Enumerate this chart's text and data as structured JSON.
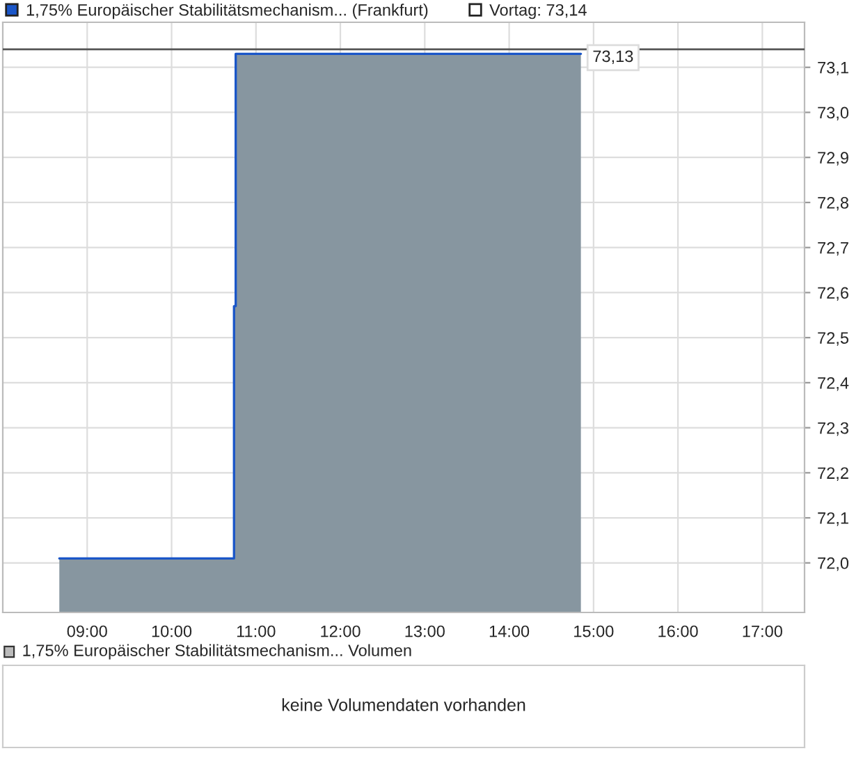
{
  "chart_data": [
    {
      "type": "area",
      "series": [
        {
          "name": "1,75% Europäischer Stabilitätsmechanism... (Frankfurt)",
          "color": "#1a56c8",
          "x": [
            8.67,
            10.74,
            10.74,
            10.76,
            10.76,
            14.85
          ],
          "values": [
            72.01,
            72.01,
            72.57,
            72.57,
            73.13,
            73.13
          ]
        }
      ],
      "xlim": [
        8.0,
        17.5
      ],
      "xticks": [
        {
          "value": 9,
          "label": "09:00"
        },
        {
          "value": 10,
          "label": "10:00"
        },
        {
          "value": 11,
          "label": "11:00"
        },
        {
          "value": 12,
          "label": "12:00"
        },
        {
          "value": 13,
          "label": "13:00"
        },
        {
          "value": 14,
          "label": "14:00"
        },
        {
          "value": 15,
          "label": "15:00"
        },
        {
          "value": 16,
          "label": "16:00"
        },
        {
          "value": 17,
          "label": "17:00"
        }
      ],
      "ylim": [
        71.89,
        73.2
      ],
      "yticks": [
        {
          "value": 72.0,
          "label": "72,0"
        },
        {
          "value": 72.1,
          "label": "72,1"
        },
        {
          "value": 72.2,
          "label": "72,2"
        },
        {
          "value": 72.3,
          "label": "72,3"
        },
        {
          "value": 72.4,
          "label": "72,4"
        },
        {
          "value": 72.5,
          "label": "72,5"
        },
        {
          "value": 72.6,
          "label": "72,6"
        },
        {
          "value": 72.7,
          "label": "72,7"
        },
        {
          "value": 72.8,
          "label": "72,8"
        },
        {
          "value": 72.9,
          "label": "72,9"
        },
        {
          "value": 73.0,
          "label": "73,0"
        },
        {
          "value": 73.1,
          "label": "73,1"
        }
      ],
      "ref_lines": [
        {
          "axis": "y",
          "value": 73.14,
          "label": "Vortag: 73,14",
          "color": "#555555"
        }
      ],
      "annotations": [
        {
          "text": "73,13",
          "x": 14.85,
          "y": 73.13
        }
      ],
      "grid": true,
      "legend": "top left"
    },
    {
      "type": "other",
      "title": "1,75% Europäischer Stabilitätsmechanism... Volumen",
      "annotations": [
        "keine Volumendaten vorhanden"
      ]
    }
  ]
}
